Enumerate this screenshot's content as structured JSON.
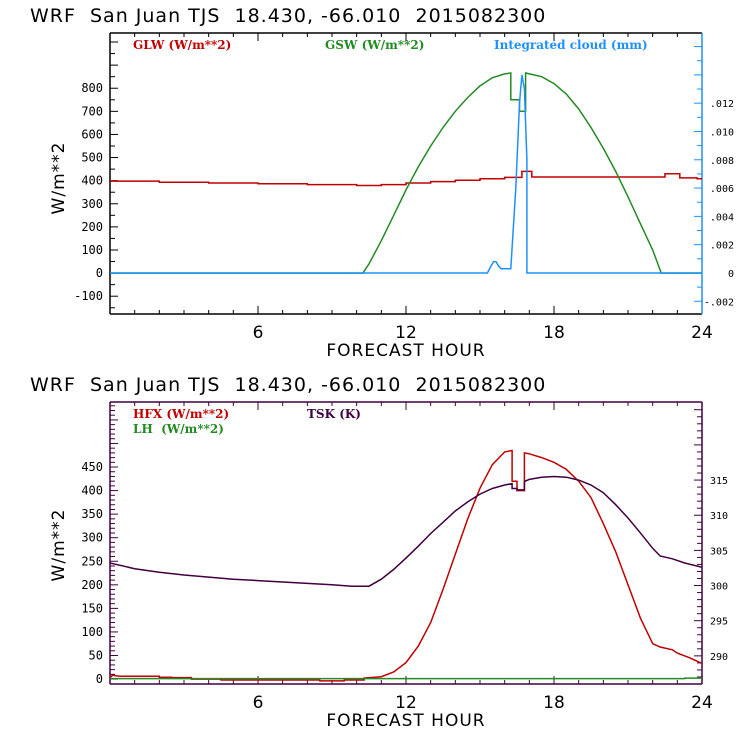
{
  "chart_data": [
    {
      "type": "line",
      "title": "WRF  San Juan TJS  18.430, -66.010  2015082300",
      "xlabel": "FORECAST HOUR",
      "ylabel": "W/m**2",
      "y2label": "",
      "xlim": [
        0,
        24
      ],
      "ylim": [
        -177,
        1039
      ],
      "y2lim": [
        -0.0029,
        0.01696
      ],
      "xticks": [
        6,
        12,
        18,
        24
      ],
      "xtick_labels": [
        "6",
        "12",
        "18",
        "24"
      ],
      "yticks": [
        -100,
        0,
        100,
        200,
        300,
        400,
        500,
        600,
        700,
        800
      ],
      "ytick_labels": [
        "-100",
        "0",
        "100",
        "200",
        "300",
        "400",
        "500",
        "600",
        "700",
        "800"
      ],
      "y2ticks": [
        -0.002,
        0,
        0.002,
        0.004,
        0.006,
        0.008,
        0.01,
        0.012
      ],
      "y2tick_labels": [
        "-.002",
        "0",
        ".002",
        ".004",
        ".006",
        ".008",
        ".010",
        ".012"
      ],
      "grid": false,
      "series": [
        {
          "name": "GLW (W/m**2)",
          "color": "#c00000",
          "axis": "left",
          "x": [
            0,
            2,
            2,
            4,
            4,
            6,
            6,
            8,
            8,
            10,
            10,
            11,
            11,
            12,
            12,
            13,
            13,
            14,
            14,
            15,
            15,
            16,
            16,
            16.7,
            16.7,
            17.1,
            17.1,
            18,
            19,
            20,
            21,
            22,
            22.5,
            22.5,
            23.1,
            23.1,
            23.8,
            23.8,
            24
          ],
          "y": [
            398,
            398,
            393,
            393,
            390,
            390,
            387,
            387,
            383,
            383,
            379,
            379,
            383,
            383,
            390,
            390,
            396,
            396,
            402,
            402,
            408,
            408,
            414,
            414,
            440,
            440,
            416,
            416,
            416,
            416,
            416,
            416,
            416,
            430,
            430,
            412,
            412,
            408,
            408
          ]
        },
        {
          "name": "GSW (W/m**2)",
          "color": "#228b22",
          "axis": "left",
          "x": [
            0,
            10.25,
            10.5,
            11,
            11.5,
            12,
            12.5,
            13,
            13.5,
            14,
            14.5,
            15,
            15.5,
            16,
            16.25,
            16.25,
            16.6,
            16.6,
            16.85,
            16.85,
            17.5,
            18,
            18.5,
            19,
            19.5,
            20,
            20.5,
            21,
            21.5,
            22,
            22.35,
            24
          ],
          "y": [
            0,
            0,
            40,
            140,
            250,
            360,
            460,
            550,
            630,
            700,
            760,
            810,
            845,
            862,
            866,
            750,
            750,
            700,
            700,
            866,
            850,
            820,
            775,
            710,
            630,
            540,
            440,
            330,
            215,
            100,
            0,
            0
          ]
        },
        {
          "name": "Integrated cloud (mm)",
          "color": "#1e90ff",
          "axis": "right",
          "x": [
            0,
            15.3,
            15.45,
            15.55,
            15.65,
            15.75,
            15.85,
            16.0,
            16.25,
            16.45,
            16.6,
            16.7,
            16.8,
            16.9,
            16.9,
            24
          ],
          "y": [
            0,
            0,
            0.0005,
            0.0008,
            0.0008,
            0.0005,
            0.0003,
            0.0003,
            0.0003,
            0.006,
            0.012,
            0.014,
            0.013,
            0.008,
            0,
            0
          ]
        }
      ],
      "legend": [
        "GLW (W/m**2)",
        "GSW (W/m**2)",
        "Integrated cloud (mm)"
      ],
      "legend_position": "top"
    },
    {
      "type": "line",
      "title": "WRF  San Juan TJS  18.430, -66.010  2015082300",
      "xlabel": "FORECAST HOUR",
      "ylabel": "W/m**2",
      "xlim": [
        0,
        24
      ],
      "ylim": [
        -10.5,
        588
      ],
      "y2lim": [
        286.0,
        326.1
      ],
      "xticks": [
        6,
        12,
        18,
        24
      ],
      "xtick_labels": [
        "6",
        "12",
        "18",
        "24"
      ],
      "yticks": [
        0,
        50,
        100,
        150,
        200,
        250,
        300,
        350,
        400,
        450
      ],
      "ytick_labels": [
        "0",
        "50",
        "100",
        "150",
        "200",
        "250",
        "300",
        "350",
        "400",
        "450"
      ],
      "y2ticks": [
        290,
        295,
        300,
        305,
        310,
        315
      ],
      "y2tick_labels": [
        "290",
        "295",
        "300",
        "305",
        "310",
        "315"
      ],
      "grid": false,
      "series": [
        {
          "name": "HFX (W/m**2)",
          "color": "#c00000",
          "axis": "left",
          "x": [
            0,
            0.1,
            0.4,
            0.4,
            2,
            2,
            2.5,
            2.5,
            3.3,
            3.3,
            4.5,
            4.5,
            8.5,
            8.5,
            9.5,
            9.5,
            10.3,
            10.3,
            11,
            11.5,
            12,
            12.5,
            13,
            13.5,
            14,
            14.5,
            15,
            15.5,
            16,
            16.3,
            16.3,
            16.5,
            16.5,
            16.8,
            16.8,
            17,
            17.5,
            18,
            18.5,
            19,
            19.5,
            20,
            20.5,
            21,
            21.5,
            22,
            22.3,
            22.8,
            23,
            23.5,
            24
          ],
          "y": [
            3,
            8,
            6,
            6,
            6,
            4,
            4,
            3,
            3,
            0,
            0,
            -2,
            -2,
            -4,
            -4,
            -2,
            -2,
            2,
            5,
            15,
            35,
            70,
            120,
            190,
            265,
            340,
            405,
            455,
            482,
            485,
            420,
            420,
            400,
            400,
            480,
            478,
            470,
            460,
            445,
            420,
            385,
            330,
            270,
            200,
            130,
            75,
            68,
            62,
            55,
            45,
            33
          ]
        },
        {
          "name": "LH (W/m**2)",
          "color": "#228b22",
          "axis": "left",
          "x": [
            0,
            23.3,
            23.3,
            24
          ],
          "y": [
            1,
            1,
            2,
            2
          ]
        },
        {
          "name": "TSK (K)",
          "color": "#400040",
          "axis": "right",
          "x": [
            0,
            1,
            2,
            3,
            4,
            5,
            6,
            7,
            8,
            9,
            9.8,
            10.5,
            11,
            11.5,
            12,
            12.5,
            13,
            13.5,
            14,
            14.5,
            15,
            15.5,
            16,
            16.3,
            16.3,
            16.5,
            16.5,
            16.8,
            16.8,
            17,
            17.5,
            18,
            18.5,
            19,
            19.5,
            20,
            20.5,
            21,
            21.5,
            22,
            22.3,
            22.8,
            23.3,
            24
          ],
          "y": [
            303.2,
            302.4,
            301.9,
            301.5,
            301.2,
            300.9,
            300.7,
            300.5,
            300.3,
            300.1,
            299.9,
            299.9,
            300.9,
            302.3,
            303.9,
            305.6,
            307.4,
            309.0,
            310.6,
            311.9,
            313.0,
            313.8,
            314.3,
            314.5,
            313.8,
            313.8,
            313.6,
            313.6,
            314.8,
            315.1,
            315.4,
            315.5,
            315.4,
            315.0,
            314.3,
            313.2,
            311.5,
            309.6,
            307.5,
            305.3,
            304.2,
            303.8,
            303.2,
            302.6
          ]
        }
      ],
      "legend": [
        "HFX (W/m**2)",
        "LH (W/m**2)",
        "TSK (K)"
      ],
      "legend_position": "top"
    }
  ],
  "plots": [
    {
      "title": "WRF  San Juan TJS  18.430, -66.010  2015082300",
      "ylabel": "W/m**2",
      "xlabel": "FORECAST HOUR",
      "legend": [
        {
          "label": "GLW (W/m**2)",
          "color": "#c00000"
        },
        {
          "label": "GSW (W/m**2)",
          "color": "#228b22"
        },
        {
          "label": "Integrated cloud (mm)",
          "color": "#1e90ff"
        }
      ],
      "frame_color": "#000000",
      "right_axis_color": "#1e90ff"
    },
    {
      "title": "WRF  San Juan TJS  18.430, -66.010  2015082300",
      "ylabel": "W/m**2",
      "xlabel": "FORECAST HOUR",
      "legend": [
        {
          "label": "HFX (W/m**2)",
          "color": "#c00000"
        },
        {
          "label": "LH  (W/m**2)",
          "color": "#228b22"
        },
        {
          "label": "TSK (K)",
          "color": "#400040"
        }
      ],
      "frame_color": "#400040",
      "right_axis_color": "#400040"
    }
  ]
}
